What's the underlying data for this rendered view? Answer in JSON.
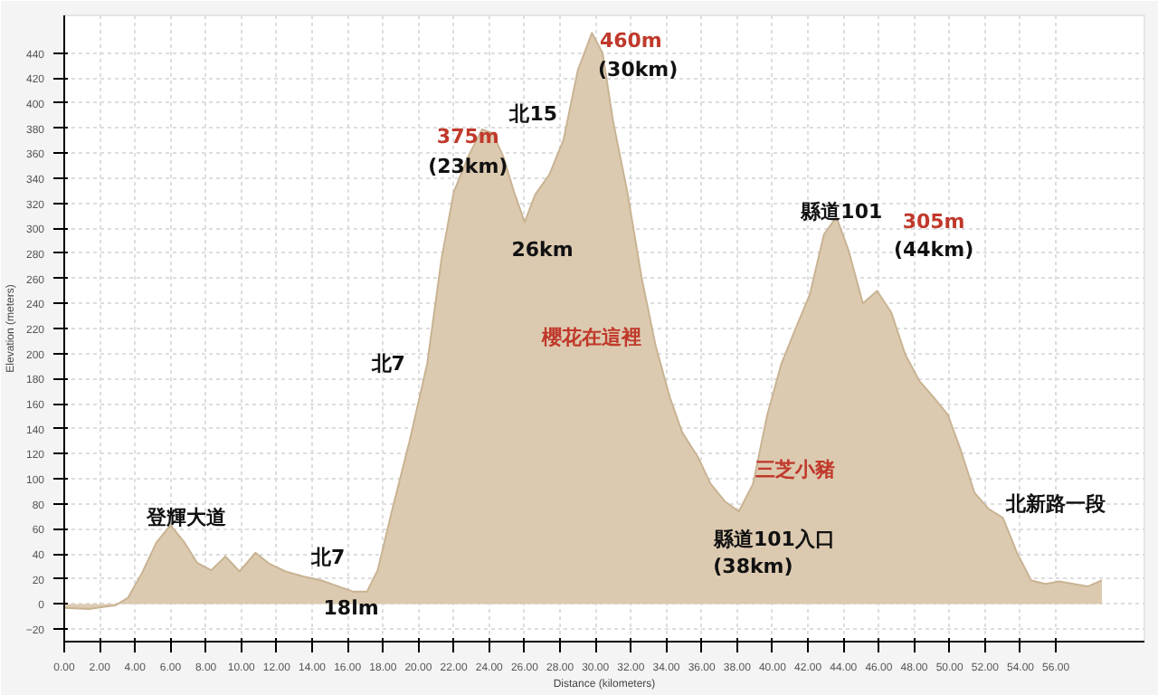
{
  "chart_data": {
    "type": "area",
    "xlabel": "Distance (kilometers)",
    "ylabel": "Elevation (meters)",
    "color": "#dccab0",
    "grid": true,
    "x": [
      0,
      1.4,
      2.9,
      3.6,
      4.4,
      5.2,
      6.0,
      6.8,
      7.5,
      8.3,
      9.1,
      9.9,
      10.8,
      11.6,
      12.5,
      13.5,
      14.5,
      15.5,
      16.3,
      17.1,
      17.7,
      18.5,
      19.5,
      20.5,
      21.3,
      22.0,
      22.8,
      23.6,
      24.2,
      24.8,
      25.4,
      26.0,
      26.6,
      27.4,
      28.2,
      29.0,
      29.8,
      30.4,
      31.0,
      31.8,
      32.6,
      33.4,
      34.2,
      34.9,
      35.8,
      36.5,
      37.3,
      38.1,
      38.9,
      39.7,
      40.5,
      41.3,
      42.1,
      42.9,
      43.6,
      44.3,
      45.1,
      45.9,
      46.7,
      47.5,
      48.3,
      49.1,
      49.9,
      50.6,
      51.4,
      52.2,
      53.0,
      53.8,
      54.6,
      55.4,
      56.2,
      57.0,
      57.8,
      58.6
    ],
    "values": [
      -3,
      -4,
      -1,
      5,
      25,
      49,
      63,
      49,
      33,
      27,
      38,
      26,
      41,
      32,
      26,
      22,
      19,
      14,
      10,
      10,
      27,
      74,
      130,
      192,
      275,
      329,
      357,
      379,
      376,
      357,
      329,
      305,
      327,
      343,
      371,
      426,
      456,
      440,
      385,
      329,
      261,
      206,
      165,
      137,
      117,
      96,
      82,
      74,
      96,
      151,
      192,
      220,
      247,
      295,
      309,
      282,
      240,
      250,
      233,
      199,
      178,
      165,
      151,
      124,
      89,
      76,
      69,
      41,
      19,
      16,
      18,
      16,
      14,
      19
    ],
    "xlim": [
      0,
      61
    ],
    "ylim": [
      -30,
      470
    ],
    "xticks": [
      {
        "value": 0,
        "label": "0.00"
      },
      {
        "value": 2,
        "label": "2.00"
      },
      {
        "value": 4,
        "label": "4.00"
      },
      {
        "value": 6,
        "label": "6.00"
      },
      {
        "value": 8,
        "label": "8.00"
      },
      {
        "value": 10,
        "label": "10.00"
      },
      {
        "value": 12,
        "label": "12.00"
      },
      {
        "value": 14,
        "label": "14.00"
      },
      {
        "value": 16,
        "label": "16.00"
      },
      {
        "value": 18,
        "label": "18.00"
      },
      {
        "value": 20,
        "label": "20.00"
      },
      {
        "value": 22,
        "label": "22.00"
      },
      {
        "value": 24,
        "label": "24.00"
      },
      {
        "value": 26,
        "label": "26.00"
      },
      {
        "value": 28,
        "label": "28.00"
      },
      {
        "value": 30,
        "label": "30.00"
      },
      {
        "value": 32,
        "label": "32.00"
      },
      {
        "value": 34,
        "label": "34.00"
      },
      {
        "value": 36,
        "label": "36.00"
      },
      {
        "value": 38,
        "label": "38.00"
      },
      {
        "value": 40,
        "label": "40.00"
      },
      {
        "value": 42,
        "label": "42.00"
      },
      {
        "value": 44,
        "label": "44.00"
      },
      {
        "value": 46,
        "label": "46.00"
      },
      {
        "value": 48,
        "label": "48.00"
      },
      {
        "value": 50,
        "label": "50.00"
      },
      {
        "value": 52,
        "label": "52.00"
      },
      {
        "value": 54,
        "label": "54.00"
      },
      {
        "value": 56,
        "label": "56.00"
      }
    ],
    "yticks": [
      -20,
      0,
      20,
      40,
      60,
      80,
      100,
      120,
      140,
      160,
      180,
      200,
      220,
      240,
      260,
      280,
      300,
      320,
      340,
      360,
      380,
      400,
      420,
      440
    ],
    "annotations": [
      "登輝大道",
      "北7",
      "18lm",
      "北7",
      "375m",
      "(23km)",
      "北15",
      "460m",
      "(30km)",
      "26km",
      "櫻花在這裡",
      "三芝小豬",
      "縣道101入口",
      "(38km)",
      "縣道101",
      "305m",
      "(44km)",
      "北新路一段"
    ]
  }
}
